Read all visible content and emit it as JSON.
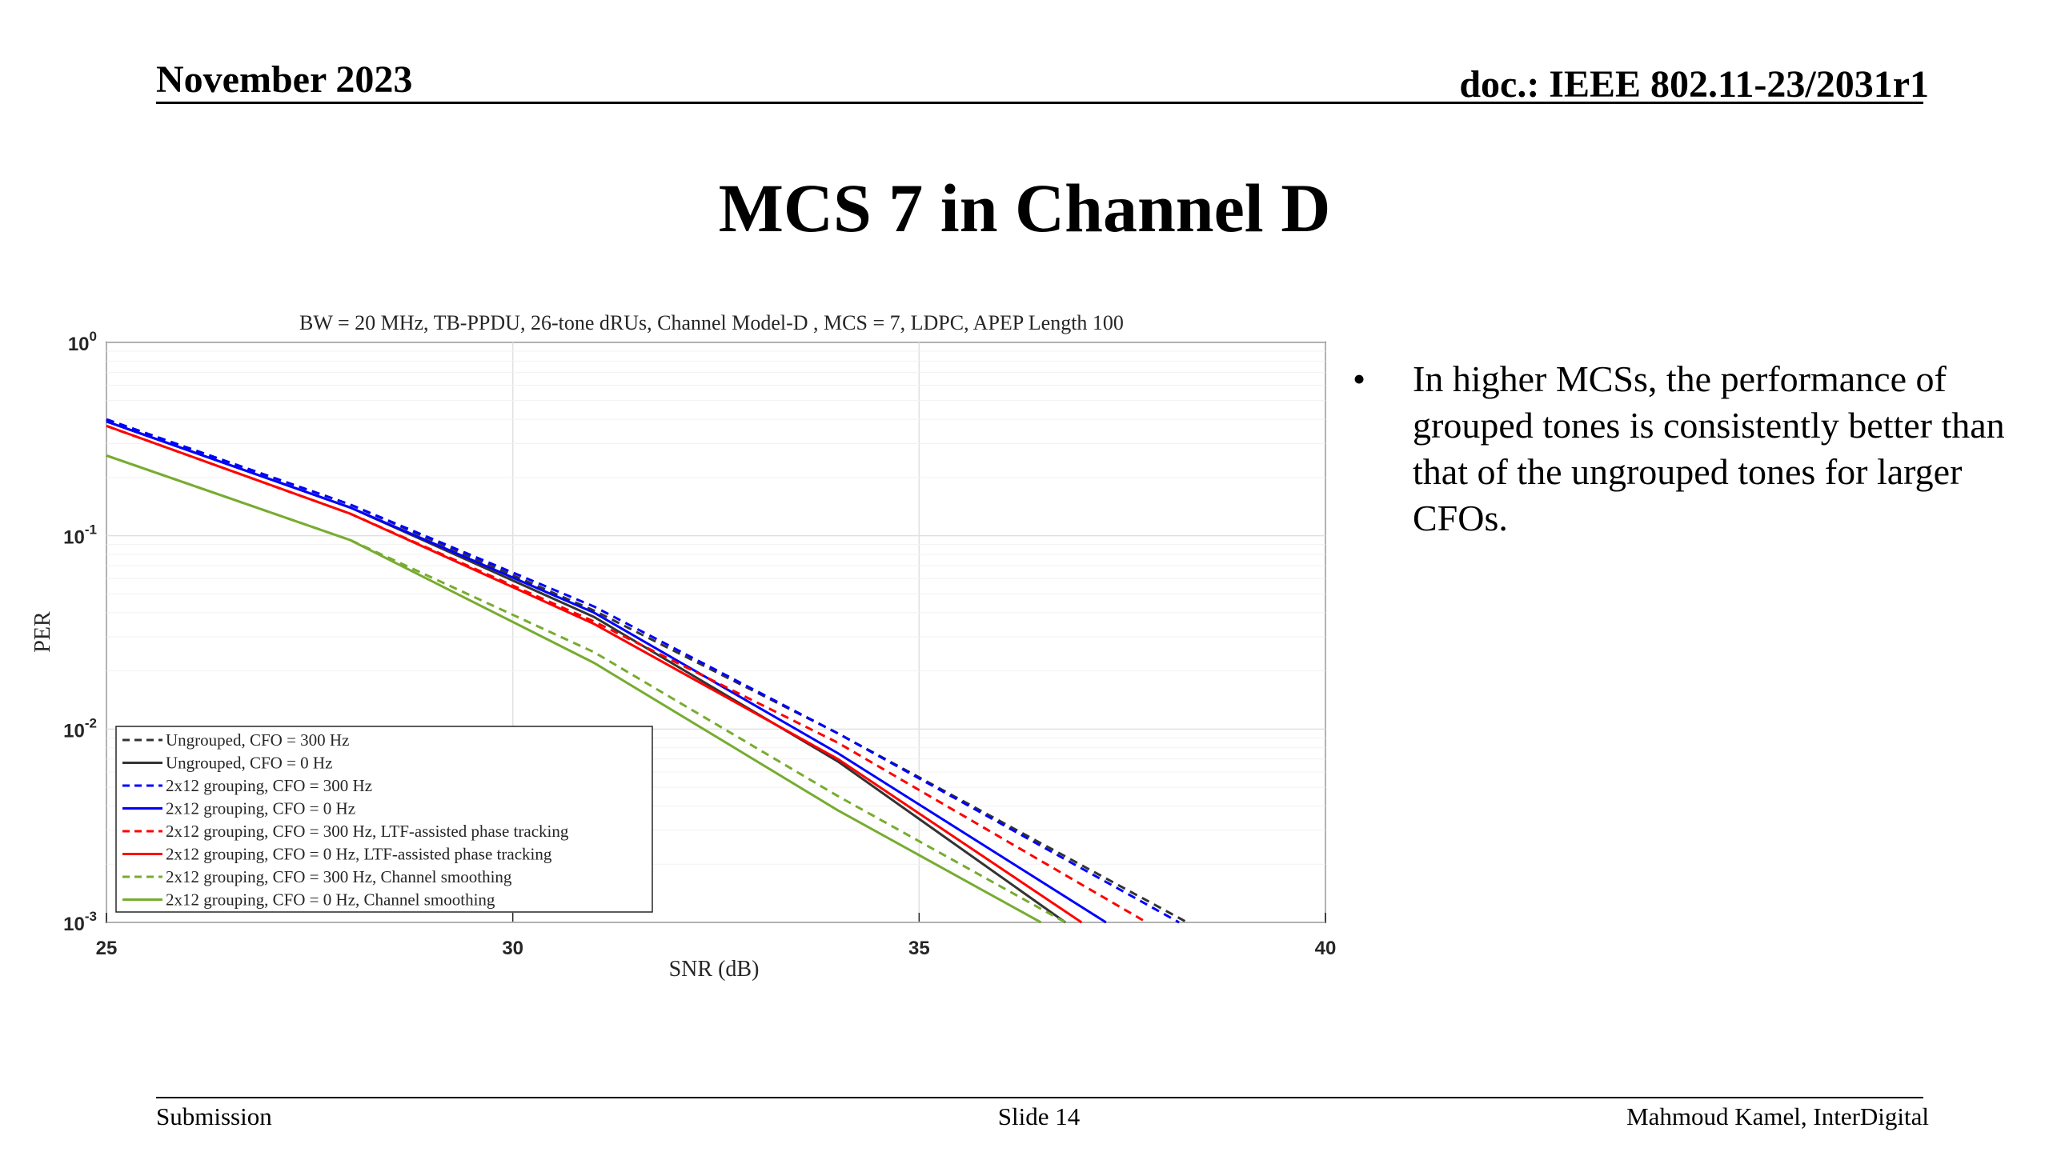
{
  "header": {
    "date": "November 2023",
    "doc": "doc.: IEEE 802.11-23/2031r1"
  },
  "slide_title": "MCS 7 in Channel D",
  "bullet": "In higher MCSs, the performance of grouped tones is consistently better than that of the ungrouped tones for larger CFOs.",
  "footer": {
    "left": "Submission",
    "center": "Slide 14",
    "right": "Mahmoud Kamel, InterDigital"
  },
  "chart_data": {
    "type": "line",
    "title": "BW = 20 MHz, TB-PPDU, 26-tone dRUs, Channel Model-D , MCS = 7, LDPC, APEP Length 100",
    "xlabel": "SNR (dB)",
    "ylabel": "PER",
    "xlim": [
      25,
      40
    ],
    "ylim": [
      0.001,
      1
    ],
    "yscale": "log",
    "x_ticks": [
      "25",
      "30",
      "35",
      "40"
    ],
    "y_ticks": [
      {
        "base": "10",
        "exp": "0"
      },
      {
        "base": "10",
        "exp": "-1"
      },
      {
        "base": "10",
        "exp": "-2"
      },
      {
        "base": "10",
        "exp": "-3"
      }
    ],
    "grid": true,
    "legend_position": "bottom-left",
    "series": [
      {
        "name": "Ungrouped, CFO = 300 Hz",
        "color": "#333333",
        "dash": "dashed",
        "x": [
          25,
          28,
          31,
          34,
          38.3
        ],
        "y": [
          0.4,
          0.145,
          0.041,
          0.0095,
          0.001
        ]
      },
      {
        "name": "Ungrouped, CFO = 0 Hz",
        "color": "#333333",
        "dash": "solid",
        "x": [
          25,
          28,
          31,
          34,
          36.8
        ],
        "y": [
          0.39,
          0.14,
          0.038,
          0.0068,
          0.001
        ]
      },
      {
        "name": "2x12 grouping, CFO = 300 Hz",
        "color": "#0000ff",
        "dash": "dashed",
        "x": [
          25,
          28,
          31,
          34,
          38.2
        ],
        "y": [
          0.4,
          0.145,
          0.043,
          0.0095,
          0.001
        ]
      },
      {
        "name": "2x12 grouping, CFO = 0 Hz",
        "color": "#0000ff",
        "dash": "solid",
        "x": [
          25,
          28,
          31,
          34,
          37.3
        ],
        "y": [
          0.39,
          0.14,
          0.04,
          0.0075,
          0.001
        ]
      },
      {
        "name": "2x12 grouping, CFO = 300 Hz, LTF-assisted phase tracking",
        "color": "#ff0000",
        "dash": "dashed",
        "x": [
          25,
          28,
          31,
          34,
          37.8
        ],
        "y": [
          0.37,
          0.13,
          0.036,
          0.0085,
          0.001
        ]
      },
      {
        "name": "2x12 grouping, CFO = 0 Hz, LTF-assisted phase tracking",
        "color": "#ff0000",
        "dash": "solid",
        "x": [
          25,
          28,
          31,
          34,
          37
        ],
        "y": [
          0.37,
          0.13,
          0.035,
          0.007,
          0.001
        ]
      },
      {
        "name": "2x12 grouping, CFO = 300 Hz, Channel smoothing",
        "color": "#77ac30",
        "dash": "dashed",
        "x": [
          25,
          28,
          31,
          34,
          36.8
        ],
        "y": [
          0.26,
          0.095,
          0.025,
          0.0045,
          0.001
        ]
      },
      {
        "name": "2x12 grouping, CFO = 0 Hz, Channel smoothing",
        "color": "#77ac30",
        "dash": "solid",
        "x": [
          25,
          28,
          31,
          34,
          36.5
        ],
        "y": [
          0.26,
          0.095,
          0.022,
          0.0038,
          0.001
        ]
      }
    ]
  }
}
